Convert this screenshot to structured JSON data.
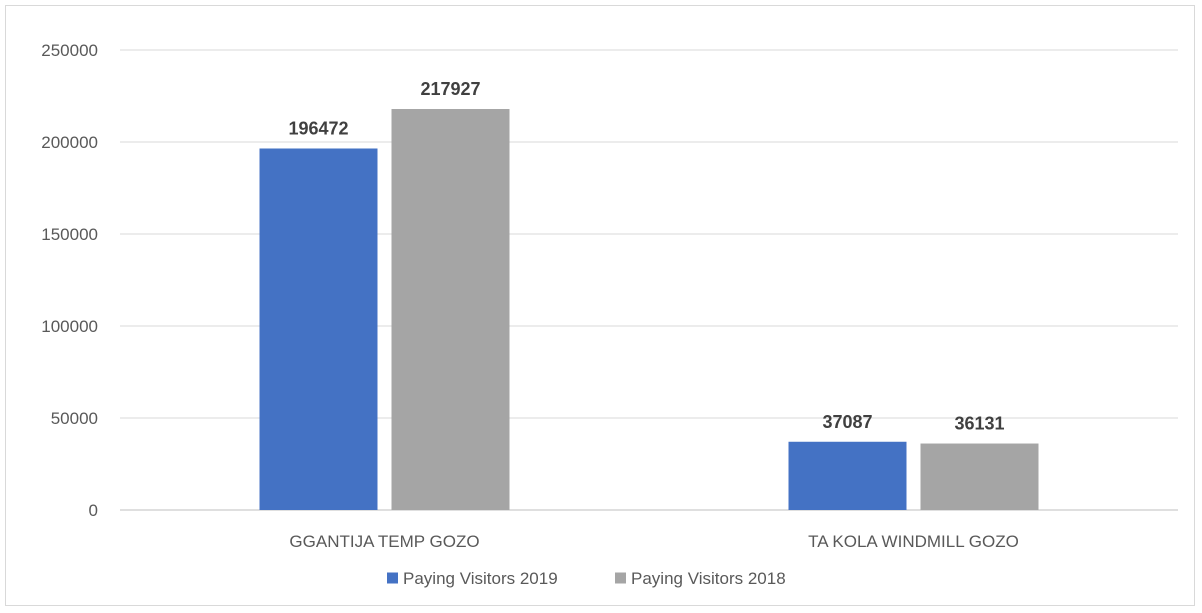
{
  "chart_data": {
    "type": "bar",
    "categories": [
      "GGANTIJA TEMP GOZO",
      "TA KOLA WINDMILL GOZO"
    ],
    "series": [
      {
        "name": "Paying Visitors 2019",
        "values": [
          196472,
          37087
        ],
        "color": "#4472C4"
      },
      {
        "name": "Paying Visitors 2018",
        "values": [
          217927,
          36131
        ],
        "color": "#A5A5A5"
      }
    ],
    "y_ticks": [
      "0",
      "50000",
      "100000",
      "150000",
      "200000",
      "250000"
    ],
    "ylim": [
      0,
      250000
    ],
    "grid": true,
    "legend_position": "bottom",
    "data_labels": true
  }
}
